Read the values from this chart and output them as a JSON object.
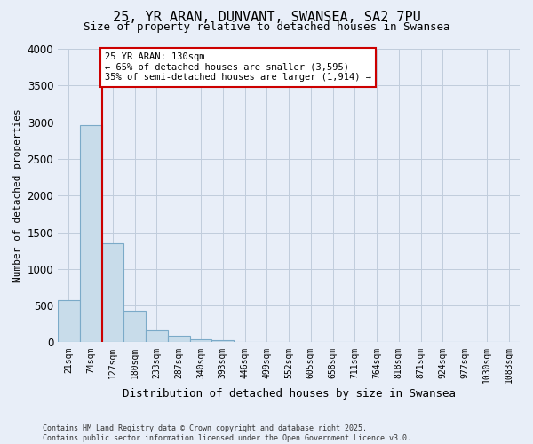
{
  "title_line1": "25, YR ARAN, DUNVANT, SWANSEA, SA2 7PU",
  "title_line2": "Size of property relative to detached houses in Swansea",
  "xlabel": "Distribution of detached houses by size in Swansea",
  "ylabel": "Number of detached properties",
  "categories": [
    "21sqm",
    "74sqm",
    "127sqm",
    "180sqm",
    "233sqm",
    "287sqm",
    "340sqm",
    "393sqm",
    "446sqm",
    "499sqm",
    "552sqm",
    "605sqm",
    "658sqm",
    "711sqm",
    "764sqm",
    "818sqm",
    "871sqm",
    "924sqm",
    "977sqm",
    "1030sqm",
    "1083sqm"
  ],
  "values": [
    570,
    2960,
    1350,
    430,
    160,
    90,
    45,
    30,
    0,
    0,
    0,
    0,
    0,
    0,
    0,
    0,
    0,
    0,
    0,
    0,
    0
  ],
  "bar_color": "#c8dcea",
  "bar_edge_color": "#7baac8",
  "vline_color": "#cc0000",
  "annotation_text": "25 YR ARAN: 130sqm\n← 65% of detached houses are smaller (3,595)\n35% of semi-detached houses are larger (1,914) →",
  "annotation_box_color": "#ffffff",
  "annotation_box_edge": "#cc0000",
  "ylim": [
    0,
    4000
  ],
  "yticks": [
    0,
    500,
    1000,
    1500,
    2000,
    2500,
    3000,
    3500,
    4000
  ],
  "footer_line1": "Contains HM Land Registry data © Crown copyright and database right 2025.",
  "footer_line2": "Contains public sector information licensed under the Open Government Licence v3.0.",
  "bg_color": "#e8eef8",
  "grid_color": "#c0ccdc",
  "vline_bar_index": 2
}
